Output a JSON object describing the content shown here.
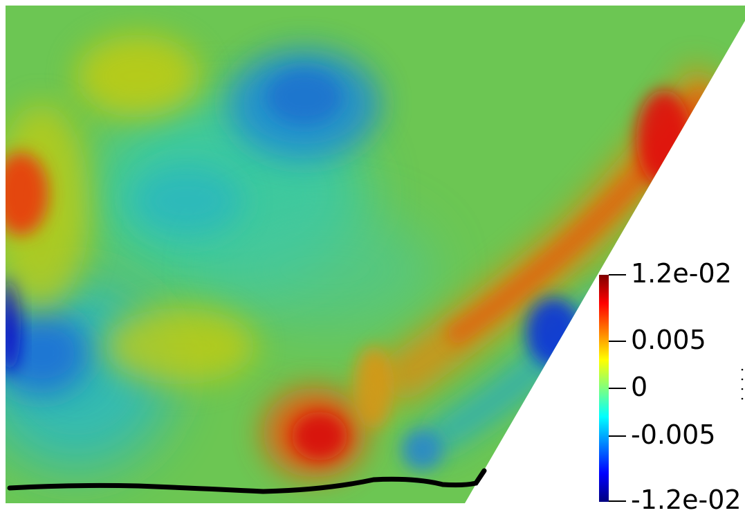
{
  "colorbar": {
    "ticks": [
      {
        "value": 0.012,
        "label": "1.2e-02"
      },
      {
        "value": 0.005,
        "label": "0.005"
      },
      {
        "value": 0,
        "label": "0"
      },
      {
        "value": -0.005,
        "label": "-0.005"
      },
      {
        "value": -0.012,
        "label": "-1.2e-02"
      }
    ],
    "range": [
      -0.012,
      0.012
    ],
    "colormap": "jet"
  },
  "colors": {
    "background_field": "#6cc653",
    "contour_line": "#000000"
  }
}
